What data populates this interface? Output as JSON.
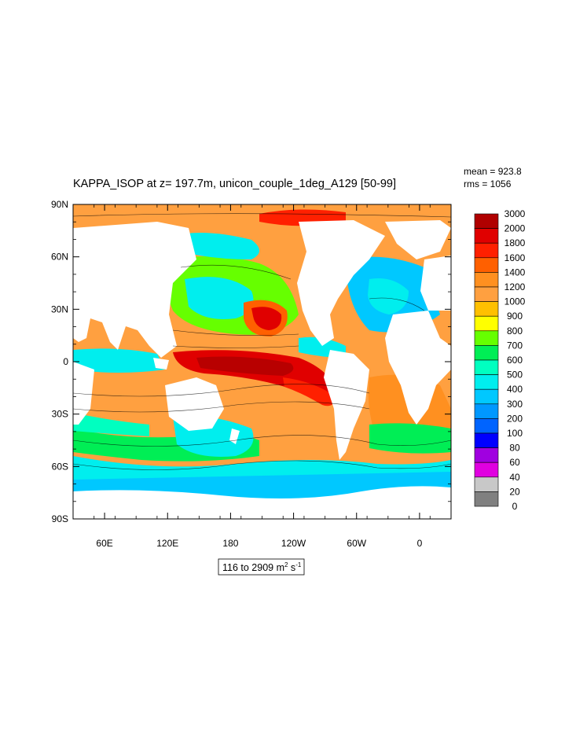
{
  "figure": {
    "title": "KAPPA_ISOP at z= 197.7m, unicon_couple_1deg_A129 [50-99]",
    "stats": {
      "mean": "mean = 923.8",
      "rms": "rms = 1056"
    },
    "range_label": {
      "text": "116 to 2909 m",
      "sup1": "2",
      "mid": " s",
      "sup2": "-1"
    }
  },
  "map": {
    "lat_ticks": [
      "90N",
      "60N",
      "30N",
      "0",
      "30S",
      "60S",
      "90S"
    ],
    "lon_ticks": [
      "60E",
      "120E",
      "180",
      "120W",
      "60W",
      "0"
    ],
    "land_color": "#ffffff",
    "ocean_field_palette": [
      "#00C8FF",
      "#00EEEE",
      "#00FFC0",
      "#00EE55",
      "#66FF00",
      "#FFFF00",
      "#FFC000",
      "#FFA040",
      "#FF9020",
      "#FF6000",
      "#FF2000",
      "#E00000",
      "#B80000"
    ]
  },
  "legend": {
    "labels": [
      "3000",
      "2000",
      "1800",
      "1600",
      "1400",
      "1200",
      "1000",
      "900",
      "800",
      "700",
      "600",
      "500",
      "400",
      "300",
      "200",
      "100",
      "80",
      "60",
      "40",
      "20",
      "0"
    ],
    "colors": [
      "#B00000",
      "#E00000",
      "#FF2000",
      "#FF6000",
      "#FF9020",
      "#FFA040",
      "#FFC000",
      "#FFFF00",
      "#66FF00",
      "#00EE55",
      "#00FFC0",
      "#00EEEE",
      "#00C8FF",
      "#0098FF",
      "#0064FF",
      "#0000FF",
      "#A000E0",
      "#E000E0",
      "#C8C8C8",
      "#808080"
    ]
  }
}
